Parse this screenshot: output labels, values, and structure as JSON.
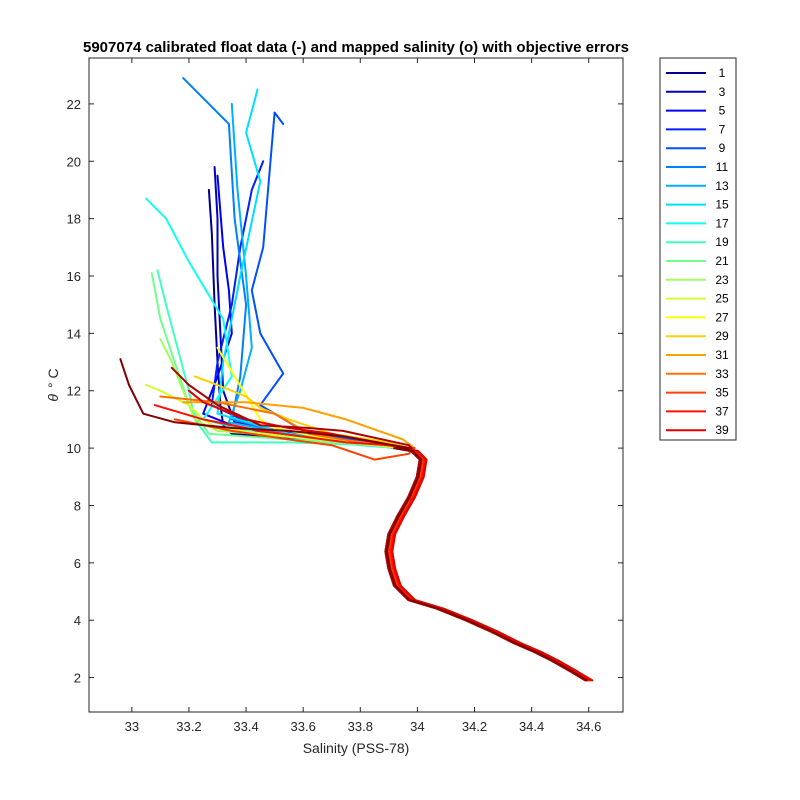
{
  "chart_data": {
    "type": "line",
    "title": "5907074 calibrated float data (-) and mapped salinity (o) with objective errors",
    "xlabel": "Salinity (PSS-78)",
    "ylabel_symbol": "θ",
    "ylabel_unit": "° C",
    "xlim": [
      32.85,
      34.72
    ],
    "ylim": [
      0.8,
      23.6
    ],
    "xticks": [
      "33",
      "33.2",
      "33.4",
      "33.6",
      "33.8",
      "34",
      "34.2",
      "34.4",
      "34.6"
    ],
    "yticks": [
      "2",
      "4",
      "6",
      "8",
      "10",
      "12",
      "14",
      "16",
      "18",
      "20",
      "22"
    ],
    "grid": false,
    "legend_position": "outside-right",
    "colormap": "jet",
    "deep_profile": {
      "x": [
        33.93,
        33.99,
        34.02,
        34.01,
        33.98,
        33.94,
        33.91,
        33.9,
        33.91,
        33.93,
        33.98,
        34.08,
        34.18,
        34.27,
        34.35,
        34.42,
        34.48,
        34.55,
        34.6
      ],
      "y": [
        10.0,
        9.9,
        9.6,
        9.0,
        8.3,
        7.6,
        7.0,
        6.4,
        5.8,
        5.2,
        4.7,
        4.4,
        4.0,
        3.6,
        3.2,
        2.9,
        2.6,
        2.2,
        1.9
      ]
    },
    "series": [
      {
        "name": "1",
        "color": "#00008f",
        "x": [
          33.27,
          33.28,
          33.29,
          33.3,
          33.31,
          33.32,
          33.35,
          33.6,
          33.85
        ],
        "y": [
          19.0,
          17.5,
          15.0,
          13.0,
          11.5,
          10.8,
          10.5,
          10.3,
          10.1
        ]
      },
      {
        "name": "3",
        "color": "#0000bf",
        "x": [
          33.29,
          33.3,
          33.3,
          33.31,
          33.32,
          33.36,
          33.6,
          33.85
        ],
        "y": [
          19.8,
          18.0,
          16.0,
          14.0,
          12.0,
          10.9,
          10.4,
          10.1
        ]
      },
      {
        "name": "5",
        "color": "#0000ef",
        "x": [
          33.3,
          33.32,
          33.34,
          33.35,
          33.3,
          33.25,
          33.4,
          33.7,
          33.9
        ],
        "y": [
          19.5,
          17.0,
          15.5,
          14.0,
          12.5,
          11.2,
          10.6,
          10.3,
          10.1
        ]
      },
      {
        "name": "7",
        "color": "#0020ff",
        "x": [
          33.46,
          33.42,
          33.38,
          33.35,
          33.3,
          33.28,
          33.45,
          33.75,
          33.92
        ],
        "y": [
          20.0,
          19.0,
          17.0,
          15.0,
          13.0,
          11.5,
          10.7,
          10.3,
          10.1
        ]
      },
      {
        "name": "9",
        "color": "#0050ff",
        "x": [
          33.53,
          33.5,
          33.46,
          33.42,
          33.45,
          33.53,
          33.45,
          33.6,
          33.9
        ],
        "y": [
          21.3,
          21.7,
          17.0,
          15.5,
          14.0,
          12.6,
          11.5,
          10.6,
          10.1
        ]
      },
      {
        "name": "11",
        "color": "#0080ff",
        "x": [
          33.18,
          33.34,
          33.36,
          33.4,
          33.38,
          33.35,
          33.55,
          33.85
        ],
        "y": [
          22.9,
          21.3,
          18.0,
          15.0,
          12.5,
          11.0,
          10.5,
          10.1
        ]
      },
      {
        "name": "13",
        "color": "#00afff",
        "x": [
          33.35,
          33.37,
          33.4,
          33.42,
          33.38,
          33.34,
          33.55,
          33.85
        ],
        "y": [
          22.0,
          19.0,
          16.0,
          13.5,
          12.0,
          10.9,
          10.5,
          10.1
        ]
      },
      {
        "name": "15",
        "color": "#00dfff",
        "x": [
          33.44,
          33.4,
          33.45,
          33.38,
          33.32,
          33.3,
          33.55,
          33.85
        ],
        "y": [
          22.5,
          21.0,
          19.3,
          16.0,
          13.0,
          11.2,
          10.5,
          10.1
        ]
      },
      {
        "name": "17",
        "color": "#10ffef",
        "x": [
          33.05,
          33.12,
          33.2,
          33.32,
          33.35,
          33.25,
          33.45,
          33.8
        ],
        "y": [
          18.7,
          18.0,
          16.5,
          14.5,
          12.5,
          11.0,
          10.5,
          10.1
        ]
      },
      {
        "name": "19",
        "color": "#40ffbf",
        "x": [
          33.09,
          33.12,
          33.16,
          33.2,
          33.22,
          33.28,
          33.55,
          33.85,
          33.92
        ],
        "y": [
          16.2,
          15.0,
          13.5,
          12.0,
          11.0,
          10.2,
          10.2,
          10.1,
          10.0
        ]
      },
      {
        "name": "21",
        "color": "#70ff8f",
        "x": [
          33.07,
          33.1,
          33.15,
          33.2,
          33.27,
          33.55,
          33.85,
          33.93
        ],
        "y": [
          16.1,
          14.5,
          13.0,
          11.5,
          10.5,
          10.3,
          10.1,
          10.0
        ]
      },
      {
        "name": "23",
        "color": "#9fff60",
        "x": [
          33.1,
          33.14,
          33.18,
          33.22,
          33.3,
          33.55,
          33.85,
          33.94
        ],
        "y": [
          13.8,
          13.0,
          12.0,
          11.0,
          10.6,
          10.4,
          10.1,
          10.0
        ]
      },
      {
        "name": "25",
        "color": "#cfff30",
        "x": [
          33.05,
          33.1,
          33.2,
          33.25,
          33.3,
          33.55,
          33.85,
          33.95
        ],
        "y": [
          12.2,
          12.0,
          11.5,
          11.0,
          10.7,
          10.4,
          10.1,
          10.0
        ]
      },
      {
        "name": "27",
        "color": "#ffff00",
        "x": [
          33.3,
          33.36,
          33.42,
          33.45,
          33.5,
          33.65,
          33.88,
          33.96
        ],
        "y": [
          13.5,
          12.5,
          11.5,
          11.0,
          10.7,
          10.4,
          10.1,
          10.0
        ]
      },
      {
        "name": "29",
        "color": "#ffcf00",
        "x": [
          33.22,
          33.3,
          33.4,
          33.45,
          33.55,
          33.7,
          33.9,
          33.97
        ],
        "y": [
          12.5,
          12.2,
          11.8,
          11.4,
          11.0,
          10.5,
          10.2,
          10.0
        ]
      },
      {
        "name": "31",
        "color": "#ff9f00",
        "x": [
          33.18,
          33.4,
          33.6,
          33.75,
          33.95,
          33.99
        ],
        "y": [
          11.6,
          11.6,
          11.4,
          11.0,
          10.3,
          10.0
        ]
      },
      {
        "name": "33",
        "color": "#ff7000",
        "x": [
          33.1,
          33.3,
          33.5,
          33.62,
          33.8,
          33.98
        ],
        "y": [
          11.8,
          11.6,
          11.2,
          10.5,
          10.2,
          10.0
        ]
      },
      {
        "name": "35",
        "color": "#ff4000",
        "x": [
          33.15,
          33.35,
          33.55,
          33.7,
          33.85,
          33.97,
          33.99
        ],
        "y": [
          11.0,
          10.6,
          10.3,
          10.1,
          9.6,
          9.8,
          10.0
        ]
      },
      {
        "name": "37",
        "color": "#ff1000",
        "x": [
          33.08,
          33.25,
          33.45,
          33.6,
          33.75,
          33.9,
          33.98
        ],
        "y": [
          11.5,
          11.0,
          10.6,
          10.4,
          10.2,
          10.1,
          10.0
        ]
      },
      {
        "name": "39",
        "color": "#df0000",
        "x": [
          33.2,
          33.25,
          33.4,
          33.55,
          33.7,
          33.85,
          33.98
        ],
        "y": [
          12.0,
          11.6,
          11.0,
          10.7,
          10.5,
          10.2,
          10.0
        ]
      },
      {
        "name": "",
        "color": "#af0000",
        "x": [
          33.14,
          33.2,
          33.3,
          33.45,
          33.62,
          33.74,
          33.97,
          33.98
        ],
        "y": [
          12.8,
          12.2,
          11.5,
          10.8,
          10.7,
          10.6,
          10.1,
          10.0
        ]
      },
      {
        "name": "",
        "color": "#800000",
        "x": [
          32.96,
          32.99,
          33.04,
          33.15,
          33.35,
          33.55,
          33.75,
          33.97
        ],
        "y": [
          13.1,
          12.2,
          11.2,
          10.9,
          10.7,
          10.6,
          10.4,
          10.0
        ]
      }
    ]
  }
}
